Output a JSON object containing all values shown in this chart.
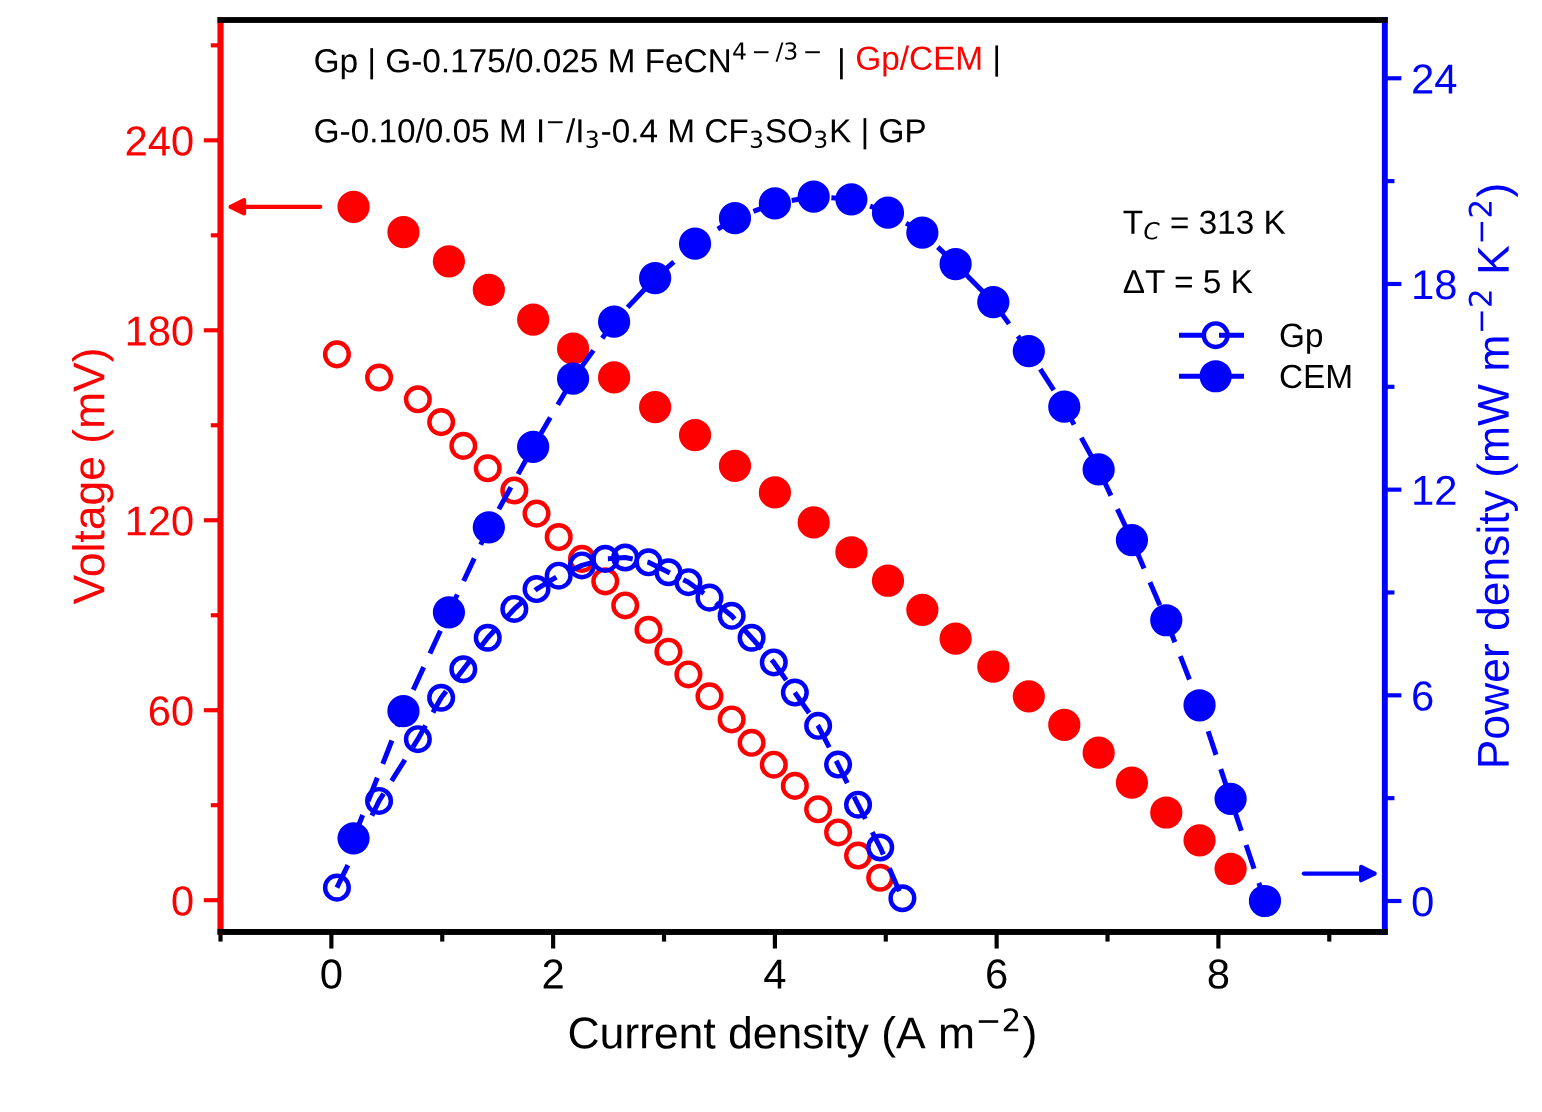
{
  "chart_data": {
    "type": "line",
    "xlabel": "Current density (A m$^{−2}$)",
    "ylabel": "Voltage (mV)",
    "y2label": "Power density (mW m$^{−2}$ K$^{−2}$)",
    "xlim": [
      -1,
      9.5
    ],
    "xticks": [
      0,
      2,
      4,
      6,
      8
    ],
    "ylim": [
      -10,
      278
    ],
    "yticks": [
      0,
      60,
      120,
      180,
      240
    ],
    "y2lim": [
      -0.9,
      25.7
    ],
    "y2ticks": [
      0,
      6,
      12,
      18,
      24
    ],
    "grid": false,
    "legend": "top right",
    "marker": "circle",
    "annotations": [
      "Gp | G-0.175/0.025 M FeCN$^{4−/3−}$ | ",
      "Gp/CEM",
      " |",
      "G-0.10/0.05 M I$^{−}$/I$_{3}$-0.4 M CF$_{3}$SO$_{3}$K | GP",
      "T$_{C}$ = 313 K",
      "ΔT = 5 K"
    ],
    "series": [
      {
        "type": "scatter",
        "color": "#ff0000",
        "x": [
          0.05,
          0.43,
          0.78,
          0.99,
          1.19,
          1.41,
          1.65,
          1.85,
          2.05,
          2.26,
          2.47,
          2.65,
          2.86,
          3.04,
          3.22,
          3.41,
          3.61,
          3.79,
          3.99,
          4.18,
          4.39,
          4.57,
          4.75,
          4.95
        ],
        "values": [
          172.4,
          165.1,
          158.2,
          151,
          143.5,
          136.4,
          129.4,
          122.1,
          114.7,
          107.8,
          100.7,
          93.1,
          85.4,
          78.5,
          71.3,
          64.4,
          57.1,
          49.7,
          42.8,
          36.1,
          28.7,
          21.4,
          14.1,
          7.1
        ]
      },
      {
        "type": "scatter",
        "color": "#ff0000",
        "x": [
          0.2,
          0.65,
          1.06,
          1.42,
          1.82,
          2.18,
          2.55,
          2.92,
          3.28,
          3.64,
          4.0,
          4.35,
          4.69,
          5.02,
          5.33,
          5.63,
          5.97,
          6.29,
          6.61,
          6.92,
          7.22,
          7.53,
          7.83,
          8.11
        ],
        "values": [
          219,
          211,
          201.8,
          192.8,
          183.4,
          174.2,
          165.1,
          155.7,
          146.9,
          137.2,
          128.8,
          119.3,
          109.9,
          100.9,
          91.7,
          82.6,
          73.8,
          64.4,
          55.4,
          46.6,
          37.1,
          27.7,
          18.9,
          9.9
        ]
      },
      {
        "type": "line",
        "line_style": "dashed",
        "name": "Gp",
        "axis": "y2",
        "color": "#0000ff",
        "x": [
          0.05,
          0.43,
          0.78,
          0.99,
          1.19,
          1.41,
          1.65,
          1.85,
          2.05,
          2.26,
          2.47,
          2.65,
          2.86,
          3.04,
          3.22,
          3.41,
          3.61,
          3.79,
          3.99,
          4.18,
          4.39,
          4.57,
          4.75,
          4.95,
          5.15
        ],
        "values": [
          0.39,
          2.92,
          4.72,
          5.93,
          6.76,
          7.68,
          8.52,
          9.1,
          9.49,
          9.79,
          9.98,
          10.02,
          9.88,
          9.59,
          9.3,
          8.85,
          8.32,
          7.68,
          6.96,
          6.08,
          5.11,
          3.98,
          2.81,
          1.56,
          0.08
        ]
      },
      {
        "type": "line",
        "line_style": "dashed",
        "name": "CEM",
        "axis": "y2",
        "color": "#0000ff",
        "x": [
          0.2,
          0.65,
          1.06,
          1.42,
          1.82,
          2.18,
          2.55,
          2.92,
          3.28,
          3.64,
          4.0,
          4.35,
          4.69,
          5.02,
          5.33,
          5.63,
          5.97,
          6.29,
          6.61,
          6.92,
          7.22,
          7.53,
          7.83,
          8.11,
          8.42
        ],
        "values": [
          1.83,
          5.54,
          8.42,
          10.9,
          13.25,
          15.24,
          16.9,
          18.17,
          19.18,
          19.92,
          20.35,
          20.55,
          20.47,
          20.08,
          19.5,
          18.58,
          17.47,
          16.04,
          14.42,
          12.59,
          10.53,
          8.19,
          5.71,
          2.98,
          0.0
        ]
      }
    ]
  }
}
